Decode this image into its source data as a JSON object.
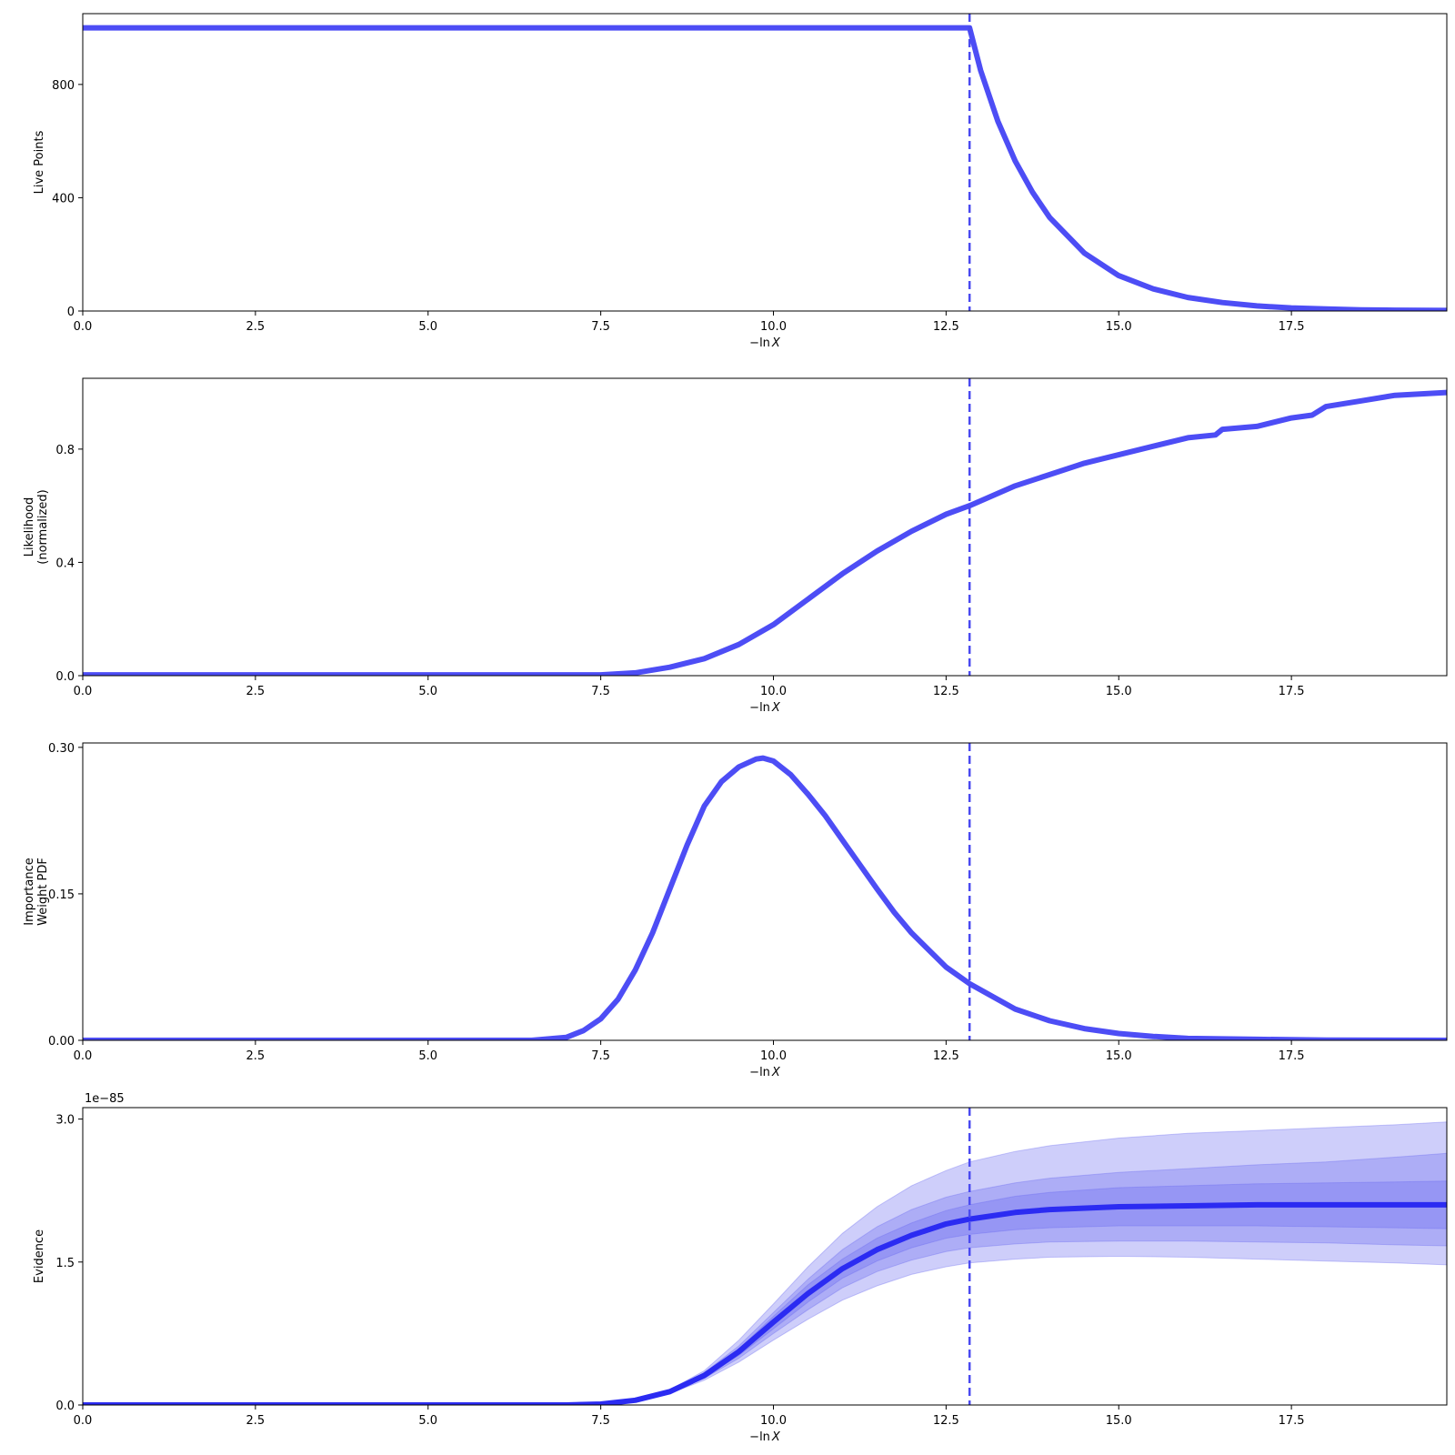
{
  "chart_data": [
    {
      "type": "line",
      "panel": "live-points",
      "ylabel": [
        "Live Points"
      ],
      "xlabel": "−ln X",
      "xlim": [
        0,
        19.75
      ],
      "ylim": [
        0,
        1050
      ],
      "xticks": [
        0,
        2.5,
        5,
        7.5,
        10,
        12.5,
        15,
        17.5
      ],
      "xtick_labels": [
        "0.0",
        "2.5",
        "5.0",
        "7.5",
        "10.0",
        "12.5",
        "15.0",
        "17.5"
      ],
      "yticks": [
        0,
        400,
        800
      ],
      "ytick_labels": [
        "0",
        "400",
        "800"
      ],
      "vline_x": 12.84,
      "series": [
        {
          "x": [
            0,
            12.84,
            13.0,
            13.25,
            13.5,
            13.75,
            14.0,
            14.5,
            15.0,
            15.5,
            16.0,
            16.5,
            17.0,
            17.5,
            18.0,
            18.5,
            19.0,
            19.75
          ],
          "y": [
            1000,
            1000,
            850,
            670,
            530,
            420,
            330,
            205,
            125,
            78,
            48,
            30,
            18,
            11,
            7,
            4,
            3,
            2
          ]
        }
      ]
    },
    {
      "type": "line",
      "panel": "likelihood",
      "ylabel": [
        "Likelihood",
        "(normalized)"
      ],
      "xlabel": "−ln X",
      "xlim": [
        0,
        19.75
      ],
      "ylim": [
        0,
        1.05
      ],
      "xticks": [
        0,
        2.5,
        5,
        7.5,
        10,
        12.5,
        15,
        17.5
      ],
      "xtick_labels": [
        "0.0",
        "2.5",
        "5.0",
        "7.5",
        "10.0",
        "12.5",
        "15.0",
        "17.5"
      ],
      "yticks": [
        0,
        0.4,
        0.8
      ],
      "ytick_labels": [
        "0.0",
        "0.4",
        "0.8"
      ],
      "vline_x": 12.84,
      "series": [
        {
          "x": [
            0,
            7.5,
            8.0,
            8.5,
            9.0,
            9.5,
            10.0,
            10.5,
            11.0,
            11.5,
            12.0,
            12.5,
            12.84,
            13.5,
            14.0,
            14.5,
            15.0,
            15.5,
            16.0,
            16.4,
            16.5,
            17.0,
            17.5,
            17.8,
            18.0,
            18.5,
            19.0,
            19.75
          ],
          "y": [
            0.003,
            0.003,
            0.01,
            0.03,
            0.06,
            0.11,
            0.18,
            0.27,
            0.36,
            0.44,
            0.51,
            0.57,
            0.6,
            0.67,
            0.71,
            0.75,
            0.78,
            0.81,
            0.84,
            0.85,
            0.87,
            0.88,
            0.91,
            0.92,
            0.95,
            0.97,
            0.99,
            1.0
          ]
        }
      ]
    },
    {
      "type": "line",
      "panel": "importance-weight",
      "ylabel": [
        "Importance",
        "Weight PDF"
      ],
      "xlabel": "−ln X",
      "xlim": [
        0,
        19.75
      ],
      "ylim": [
        0,
        0.3045
      ],
      "xticks": [
        0,
        2.5,
        5,
        7.5,
        10,
        12.5,
        15,
        17.5
      ],
      "xtick_labels": [
        "0.0",
        "2.5",
        "5.0",
        "7.5",
        "10.0",
        "12.5",
        "15.0",
        "17.5"
      ],
      "yticks": [
        0,
        0.15,
        0.3
      ],
      "ytick_labels": [
        "0.00",
        "0.15",
        "0.30"
      ],
      "vline_x": 12.84,
      "series": [
        {
          "x": [
            0,
            6.5,
            7.0,
            7.25,
            7.5,
            7.75,
            8.0,
            8.25,
            8.5,
            8.75,
            9.0,
            9.25,
            9.5,
            9.75,
            9.85,
            10.0,
            10.25,
            10.5,
            10.75,
            11.0,
            11.25,
            11.5,
            11.75,
            12.0,
            12.5,
            12.84,
            13.5,
            14.0,
            14.5,
            15.0,
            15.5,
            16.0,
            17.0,
            18.0,
            19.75
          ],
          "y": [
            0,
            0,
            0.003,
            0.01,
            0.022,
            0.042,
            0.072,
            0.11,
            0.155,
            0.2,
            0.24,
            0.265,
            0.28,
            0.288,
            0.289,
            0.286,
            0.272,
            0.252,
            0.23,
            0.205,
            0.18,
            0.155,
            0.131,
            0.11,
            0.075,
            0.058,
            0.032,
            0.02,
            0.012,
            0.007,
            0.004,
            0.002,
            0.001,
            0.0003,
            0
          ]
        }
      ]
    },
    {
      "type": "area",
      "panel": "evidence",
      "ylabel": [
        "Evidence"
      ],
      "xlabel": "−ln X",
      "offset_label": "1e−85",
      "xlim": [
        0,
        19.75
      ],
      "ylim": [
        0,
        3.12
      ],
      "xticks": [
        0,
        2.5,
        5,
        7.5,
        10,
        12.5,
        15,
        17.5
      ],
      "xtick_labels": [
        "0.0",
        "2.5",
        "5.0",
        "7.5",
        "10.0",
        "12.5",
        "15.0",
        "17.5"
      ],
      "yticks": [
        0,
        1.5,
        3.0
      ],
      "ytick_labels": [
        "0.0",
        "1.5",
        "3.0"
      ],
      "vline_x": 12.84,
      "x": [
        0,
        7.0,
        7.5,
        8.0,
        8.5,
        9.0,
        9.5,
        10.0,
        10.5,
        11.0,
        11.5,
        12.0,
        12.5,
        12.84,
        13.5,
        14.0,
        15.0,
        16.0,
        17.0,
        18.0,
        19.0,
        19.75
      ],
      "mean": [
        0,
        0,
        0.01,
        0.05,
        0.14,
        0.31,
        0.56,
        0.87,
        1.17,
        1.43,
        1.63,
        1.78,
        1.9,
        1.95,
        2.02,
        2.05,
        2.08,
        2.09,
        2.1,
        2.1,
        2.1,
        2.1
      ],
      "bands": [
        {
          "lower": [
            0,
            0,
            0.01,
            0.045,
            0.12,
            0.26,
            0.45,
            0.68,
            0.9,
            1.1,
            1.25,
            1.37,
            1.45,
            1.49,
            1.53,
            1.55,
            1.56,
            1.55,
            1.53,
            1.51,
            1.49,
            1.47
          ],
          "upper": [
            0,
            0,
            0.012,
            0.055,
            0.16,
            0.36,
            0.68,
            1.06,
            1.45,
            1.8,
            2.08,
            2.3,
            2.46,
            2.55,
            2.66,
            2.72,
            2.8,
            2.85,
            2.88,
            2.91,
            2.94,
            2.97
          ]
        },
        {
          "lower": [
            0,
            0,
            0.01,
            0.048,
            0.13,
            0.28,
            0.49,
            0.75,
            1.0,
            1.23,
            1.4,
            1.52,
            1.61,
            1.65,
            1.69,
            1.71,
            1.72,
            1.72,
            1.71,
            1.7,
            1.68,
            1.67
          ],
          "upper": [
            0,
            0,
            0.011,
            0.052,
            0.15,
            0.34,
            0.62,
            0.97,
            1.32,
            1.63,
            1.87,
            2.05,
            2.18,
            2.24,
            2.33,
            2.38,
            2.44,
            2.48,
            2.52,
            2.55,
            2.6,
            2.64
          ]
        },
        {
          "lower": [
            0,
            0,
            0.01,
            0.05,
            0.135,
            0.29,
            0.52,
            0.8,
            1.08,
            1.33,
            1.51,
            1.65,
            1.75,
            1.79,
            1.84,
            1.86,
            1.88,
            1.88,
            1.88,
            1.87,
            1.86,
            1.85
          ],
          "upper": [
            0,
            0,
            0.01,
            0.05,
            0.145,
            0.33,
            0.59,
            0.93,
            1.26,
            1.53,
            1.75,
            1.91,
            2.04,
            2.1,
            2.19,
            2.23,
            2.28,
            2.3,
            2.32,
            2.33,
            2.34,
            2.35
          ]
        }
      ]
    }
  ],
  "colors": {
    "line": "#4d4df5",
    "evidence_line": "#2b2bf2",
    "vline": "#4a4af0",
    "band": "#6666f0"
  }
}
